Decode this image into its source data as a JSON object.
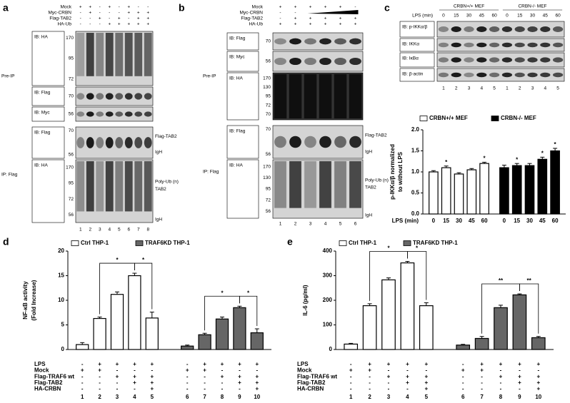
{
  "panels": [
    {
      "letter": "a",
      "treatments": [
        {
          "name": "Mock",
          "signs": [
            "+",
            "+",
            "-",
            "+",
            "-",
            "+",
            "-",
            "-"
          ]
        },
        {
          "name": "Myc-CRBN",
          "signs": [
            "-",
            "+",
            "-",
            "-",
            "-",
            "+",
            "+",
            "+"
          ]
        },
        {
          "name": "Flag-TAB2",
          "signs": [
            "-",
            "-",
            "+",
            "-",
            "+",
            "-",
            "+",
            "+"
          ]
        },
        {
          "name": "HA-Ub",
          "signs": [
            "-",
            "-",
            "-",
            "+",
            "+",
            "+",
            "+",
            "+"
          ]
        }
      ],
      "sections": [
        {
          "label": "Pre-IP",
          "blots": [
            {
              "ib": "IB: HA",
              "mw": [
                170,
                95,
                72
              ]
            },
            {
              "ib": "IB: Flag",
              "mw": [
                70
              ]
            },
            {
              "ib": "IB: Myc",
              "mw": [
                56
              ]
            }
          ]
        },
        {
          "label": "IP: Flag",
          "blots": [
            {
              "ib": "IB: Flag",
              "mw": [
                70,
                56
              ],
              "right": [
                "Flag-TAB2",
                "IgH"
              ]
            },
            {
              "ib": "IB: HA",
              "mw": [
                170,
                95,
                72,
                56
              ],
              "right": [
                "Poly-Ub (n)",
                "TAB2",
                "IgH"
              ]
            }
          ]
        }
      ],
      "lanes": [
        "1",
        "2",
        "3",
        "4",
        "5",
        "6",
        "7",
        "8"
      ]
    },
    {
      "letter": "b",
      "treatments": [
        {
          "name": "Mock",
          "signs": [
            "+",
            "+",
            "+",
            "+",
            "+",
            "-"
          ]
        },
        {
          "name": "Myc-CRBN",
          "signs": [
            "-",
            "-",
            null,
            null,
            null,
            null
          ]
        },
        {
          "name": "Flag-TAB2",
          "signs": [
            "-",
            "+",
            "+",
            "+",
            "+",
            "+"
          ]
        },
        {
          "name": "HA-Ub",
          "signs": [
            "+",
            "+",
            "+",
            "+",
            "+",
            "+"
          ]
        }
      ],
      "sections": [
        {
          "label": "Pre-IP",
          "blots": [
            {
              "ib": "IB: Flag",
              "mw": [
                70
              ]
            },
            {
              "ib": "IB: Myc",
              "mw": [
                56
              ]
            },
            {
              "ib": "IB: HA",
              "mw": [
                170,
                130,
                95,
                72,
                70
              ]
            }
          ]
        },
        {
          "label": "IP: Flag",
          "blots": [
            {
              "ib": "IB: Flag",
              "mw": [
                70,
                56
              ],
              "right": [
                "Flag-TAB2",
                "IgH"
              ]
            },
            {
              "ib": "IB: HA",
              "mw": [
                170,
                130,
                95,
                72,
                56
              ],
              "right": [
                "Poly-Ub (n)",
                "TAB2",
                "IgH"
              ]
            }
          ]
        }
      ],
      "lanes": [
        "1",
        "2",
        "3",
        "4",
        "5",
        "6"
      ]
    },
    {
      "letter": "c",
      "groups": [
        "CRBN+/+ MEF",
        "CRBN-/- MEF"
      ],
      "treatments": [
        {
          "name": "LPS (min)",
          "signs": [
            "0",
            "15",
            "30",
            "45",
            "60",
            "0",
            "15",
            "30",
            "45",
            "60"
          ]
        }
      ],
      "sections": [
        {
          "blots": [
            {
              "ib": "IB: p-IKKα/β"
            },
            {
              "ib": "IB: IKKα"
            },
            {
              "ib": "IB: IκBα"
            },
            {
              "ib": "IB: β-actin"
            }
          ]
        }
      ],
      "lanes": [
        "1",
        "2",
        "3",
        "4",
        "5",
        "1",
        "2",
        "3",
        "4",
        "5"
      ]
    }
  ],
  "chart_data": [
    {
      "type": "bar",
      "categories": [
        "0",
        "15",
        "30",
        "45",
        "60",
        "0",
        "15",
        "30",
        "45",
        "60"
      ],
      "xlabel": "LPS (min)",
      "ylabel": [
        "p-IKKα/β normalized",
        "to without LPS"
      ],
      "ylim": [
        0,
        2
      ],
      "yticks": [
        {
          "value": 0,
          "label": "0.0"
        },
        0.5,
        {
          "value": 1,
          "label": "1.0"
        },
        1.5,
        {
          "value": 2,
          "label": "2.0"
        }
      ],
      "series": [
        {
          "name": "CRBN+/+ MEF",
          "color": "#ffffff",
          "values": [
            1.0,
            1.1,
            0.95,
            1.05,
            1.2,
            null,
            null,
            null,
            null,
            null
          ],
          "errors": [
            0.03,
            0.04,
            0.03,
            0.03,
            0.03,
            null,
            null,
            null,
            null,
            null
          ],
          "significance": [
            null,
            "*",
            null,
            null,
            "*",
            null,
            null,
            null,
            null,
            null
          ]
        },
        {
          "name": "CRBN-/- MEF",
          "color": "#000000",
          "values": [
            null,
            null,
            null,
            null,
            null,
            1.1,
            1.15,
            1.15,
            1.3,
            1.5
          ],
          "errors": [
            null,
            null,
            null,
            null,
            null,
            0.06,
            0.05,
            0.05,
            0.05,
            0.06
          ],
          "significance": [
            null,
            null,
            null,
            null,
            null,
            null,
            "*",
            null,
            "*",
            "*"
          ]
        }
      ]
    },
    {
      "type": "bar",
      "letter": "d",
      "categories": [
        "1",
        "2",
        "3",
        "4",
        "5",
        "6",
        "7",
        "8",
        "9",
        "10"
      ],
      "ylabel": [
        "NF-κB activity",
        "(Fold Increase)"
      ],
      "ylim": [
        0,
        20
      ],
      "yticks": [
        0,
        5,
        10,
        15,
        20
      ],
      "series": [
        {
          "name": "Ctrl THP-1",
          "color": "#ffffff",
          "values": [
            1.0,
            6.3,
            11.2,
            15.0,
            6.4,
            null,
            null,
            null,
            null,
            null
          ],
          "errors": [
            0.4,
            0.3,
            0.5,
            0.5,
            1.2,
            null,
            null,
            null,
            null,
            null
          ]
        },
        {
          "name": "TRAF6KD THP-1",
          "color": "#666666",
          "values": [
            null,
            null,
            null,
            null,
            null,
            0.7,
            3.0,
            6.2,
            8.5,
            3.4
          ],
          "errors": [
            null,
            null,
            null,
            null,
            null,
            0.2,
            0.3,
            0.4,
            0.3,
            0.8
          ]
        }
      ],
      "comparisons": [
        {
          "lanes": [
            "2",
            "4"
          ],
          "label": "*"
        },
        {
          "lanes": [
            "4",
            "5"
          ],
          "label": "*"
        },
        {
          "lanes": [
            "7",
            "9"
          ],
          "label": "*"
        },
        {
          "lanes": [
            "9",
            "10"
          ],
          "label": "*"
        }
      ],
      "treatments": [
        {
          "name": "LPS",
          "signs": [
            "-",
            "+",
            "+",
            "+",
            "+",
            "-",
            "+",
            "+",
            "+",
            "+"
          ]
        },
        {
          "name": "Mock",
          "signs": [
            "+",
            "+",
            "-",
            "-",
            "-",
            "+",
            "+",
            "-",
            "-",
            "-"
          ]
        },
        {
          "name": "Flag-TRAF6 wt",
          "signs": [
            "-",
            "-",
            "+",
            "+",
            "+",
            "-",
            "-",
            "+",
            "+",
            "+"
          ]
        },
        {
          "name": "Flag-TAB2",
          "signs": [
            "-",
            "-",
            "-",
            "+",
            "+",
            "-",
            "-",
            "-",
            "+",
            "+"
          ]
        },
        {
          "name": "HA-CRBN",
          "signs": [
            "-",
            "-",
            "-",
            "-",
            "+",
            "-",
            "-",
            "-",
            "-",
            "+"
          ]
        }
      ]
    },
    {
      "type": "bar",
      "letter": "e",
      "categories": [
        "1",
        "2",
        "3",
        "4",
        "5",
        "6",
        "7",
        "8",
        "9",
        "10"
      ],
      "ylabel": [
        "IL-6 (pg/ml)"
      ],
      "ylim": [
        0,
        400
      ],
      "yticks": [
        0,
        100,
        200,
        300,
        400
      ],
      "series": [
        {
          "name": "Ctrl THP-1",
          "color": "#ffffff",
          "values": [
            22,
            178,
            283,
            352,
            178,
            null,
            null,
            null,
            null,
            null
          ],
          "errors": [
            3,
            8,
            8,
            6,
            12,
            null,
            null,
            null,
            null,
            null
          ]
        },
        {
          "name": "TRAF6KD THP-1",
          "color": "#666666",
          "values": [
            null,
            null,
            null,
            null,
            null,
            18,
            45,
            170,
            222,
            48
          ],
          "errors": [
            null,
            null,
            null,
            null,
            null,
            3,
            8,
            10,
            4,
            5
          ]
        }
      ],
      "comparisons": [
        {
          "lanes": [
            "2",
            "4"
          ],
          "label": "*"
        },
        {
          "lanes": [
            "4",
            "5"
          ],
          "label": "*"
        },
        {
          "lanes": [
            "7",
            "9"
          ],
          "label": "**"
        },
        {
          "lanes": [
            "9",
            "10"
          ],
          "label": "**"
        }
      ],
      "treatments": [
        {
          "name": "LPS",
          "signs": [
            "-",
            "+",
            "+",
            "+",
            "+",
            "-",
            "+",
            "+",
            "+",
            "+"
          ]
        },
        {
          "name": "Mock",
          "signs": [
            "+",
            "+",
            "-",
            "-",
            "-",
            "+",
            "+",
            "-",
            "-",
            "-"
          ]
        },
        {
          "name": "Flag-TRAF6 wt",
          "signs": [
            "-",
            "-",
            "+",
            "+",
            "+",
            "-",
            "-",
            "+",
            "+",
            "+"
          ]
        },
        {
          "name": "Flag-TAB2",
          "signs": [
            "-",
            "-",
            "-",
            "+",
            "+",
            "-",
            "-",
            "-",
            "+",
            "+"
          ]
        },
        {
          "name": "HA-CRBN",
          "signs": [
            "-",
            "-",
            "-",
            "-",
            "+",
            "-",
            "-",
            "-",
            "-",
            "+"
          ]
        }
      ]
    }
  ]
}
